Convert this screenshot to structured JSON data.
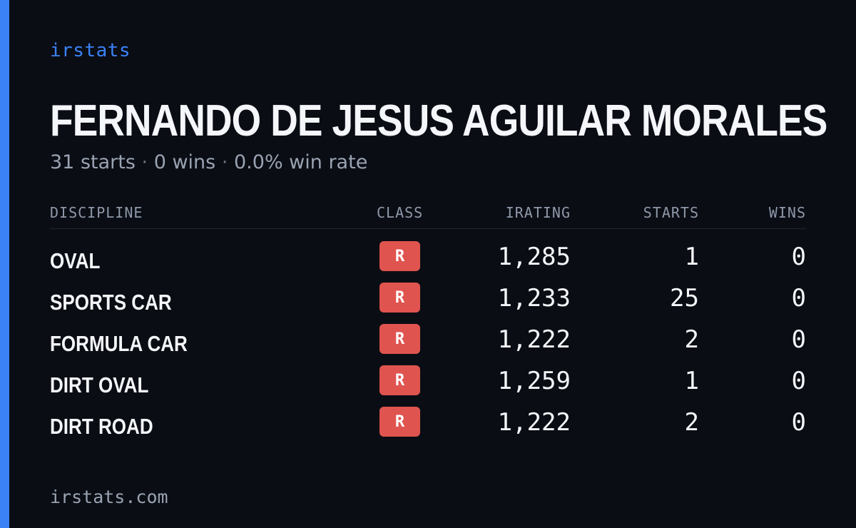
{
  "brand": "irstats",
  "driver": {
    "name": "FERNANDO DE JESUS AGUILAR MORALES",
    "starts_text": "31 starts",
    "wins_text": "0 wins",
    "win_rate_text": "0.0% win rate",
    "separator": "·"
  },
  "table": {
    "headers": [
      "DISCIPLINE",
      "CLASS",
      "IRATING",
      "STARTS",
      "WINS"
    ],
    "rows": [
      {
        "discipline": "OVAL",
        "class": "R",
        "irating": "1,285",
        "starts": "1",
        "wins": "0"
      },
      {
        "discipline": "SPORTS CAR",
        "class": "R",
        "irating": "1,233",
        "starts": "25",
        "wins": "0"
      },
      {
        "discipline": "FORMULA CAR",
        "class": "R",
        "irating": "1,222",
        "starts": "2",
        "wins": "0"
      },
      {
        "discipline": "DIRT OVAL",
        "class": "R",
        "irating": "1,259",
        "starts": "1",
        "wins": "0"
      },
      {
        "discipline": "DIRT ROAD",
        "class": "R",
        "irating": "1,222",
        "starts": "2",
        "wins": "0"
      }
    ]
  },
  "footer": "irstats.com",
  "colors": {
    "accent": "#3b82f6",
    "class_r_badge": "#e0544f",
    "background": "#0a0d14"
  }
}
